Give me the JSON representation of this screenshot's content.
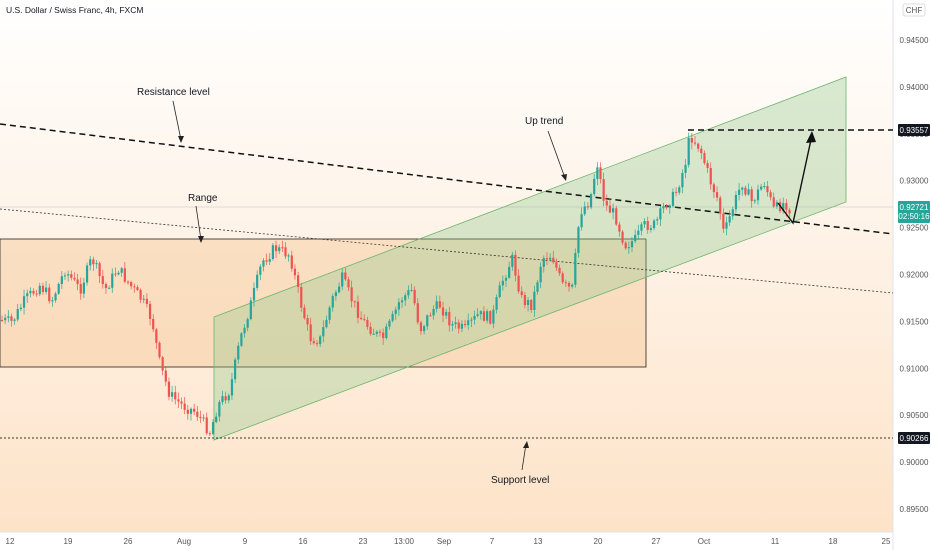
{
  "chart_data": {
    "type": "candlestick",
    "title": "U.S. Dollar / Swiss Franc, 4h, FXCM",
    "currency": "CHF",
    "ylim": [
      0.89,
      0.95
    ],
    "y_ticks": [
      "0.94500",
      "0.94000",
      "0.93500",
      "0.93000",
      "0.92500",
      "0.92000",
      "0.91500",
      "0.91000",
      "0.90500",
      "0.90000",
      "0.89500"
    ],
    "x_ticks": [
      "12",
      "19",
      "26",
      "Aug",
      "9",
      "16",
      "23",
      "13:00",
      "Sep",
      "7",
      "13",
      "20",
      "27",
      "Oct",
      "11",
      "18",
      "25"
    ],
    "price_labels": {
      "resistance_target": "0.93557",
      "current_price": "0.92721",
      "countdown": "02:50:16",
      "support": "0.90266"
    },
    "annotations": [
      "Resistance level",
      "Range",
      "Up trend",
      "Support level"
    ],
    "colors": {
      "up_candle": "#26a69a",
      "down_candle": "#ef5350",
      "range_box": "#f5b77a",
      "channel": "#8bc48a",
      "dark_badge": "#131722",
      "teal_badge": "#26a69a"
    }
  }
}
